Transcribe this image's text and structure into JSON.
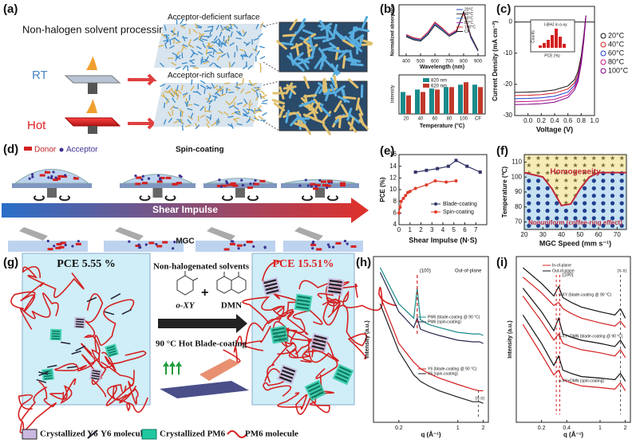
{
  "panels": {
    "a": {
      "label": "(a)",
      "title": "Non-halogen solvent processing",
      "rt": "RT",
      "hot": "Hot",
      "top_caption": "Acceptor-deficient surface",
      "bottom_caption": "Acceptor-rich surface"
    },
    "b": {
      "label": "(b)",
      "top": {
        "type": "line",
        "ylabel": "Normalized absorption",
        "xlabel": "Wavelength (nm)",
        "xlim": [
          350,
          950
        ],
        "ylim": [
          0,
          1.15
        ],
        "xticks": [
          400,
          500,
          600,
          700,
          800,
          900
        ],
        "x": [
          400,
          450,
          500,
          550,
          600,
          650,
          700,
          750,
          800,
          850,
          900
        ],
        "series": [
          {
            "name": "20°C",
            "color": "#1f3fbf",
            "values": [
              0.45,
              0.38,
              0.35,
              0.5,
              0.72,
              0.6,
              0.45,
              0.55,
              0.98,
              0.4,
              0.1
            ]
          },
          {
            "name": "40°C",
            "color": "#444444",
            "values": [
              0.46,
              0.39,
              0.36,
              0.51,
              0.73,
              0.61,
              0.46,
              0.56,
              0.97,
              0.42,
              0.11
            ]
          },
          {
            "name": "60°C",
            "color": "#3a7fd5",
            "values": [
              0.44,
              0.37,
              0.35,
              0.49,
              0.71,
              0.59,
              0.46,
              0.57,
              0.99,
              0.41,
              0.1
            ]
          },
          {
            "name": "80°C",
            "color": "#9b3fbf",
            "values": [
              0.47,
              0.4,
              0.37,
              0.52,
              0.74,
              0.62,
              0.47,
              0.56,
              0.96,
              0.43,
              0.12
            ]
          },
          {
            "name": "100°C",
            "color": "#d43030",
            "values": [
              0.48,
              0.41,
              0.38,
              0.53,
              0.76,
              0.63,
              0.48,
              0.58,
              0.95,
              0.44,
              0.12
            ]
          },
          {
            "name": "CF",
            "color": "#111111",
            "values": [
              0.43,
              0.36,
              0.33,
              0.47,
              0.69,
              0.57,
              0.44,
              0.53,
              1.0,
              0.45,
              0.13
            ]
          }
        ]
      },
      "bottom": {
        "type": "bar",
        "ylabel": "Intensity",
        "xlabel": "Temperature (°C)",
        "ylim": [
          0,
          0.8
        ],
        "categories": [
          "20",
          "40",
          "60",
          "80",
          "100",
          "CF"
        ],
        "series": [
          {
            "name": "820 nm",
            "color": "#1a8a8a",
            "values": [
              0.45,
              0.5,
              0.52,
              0.55,
              0.6,
              0.6
            ]
          },
          {
            "name": "620 nm",
            "color": "#c0392b",
            "values": [
              0.38,
              0.45,
              0.5,
              0.55,
              0.65,
              0.55
            ]
          }
        ]
      }
    },
    "c": {
      "label": "(c)",
      "type": "line",
      "xlabel": "Voltage (V)",
      "ylabel": "Current Density (mA cm⁻²)",
      "xlim": [
        -0.2,
        1.0
      ],
      "ylim": [
        -30,
        5
      ],
      "xticks": [
        {
          "value": 0,
          "label": "0.0"
        },
        0.2,
        0.4,
        0.6,
        0.8,
        {
          "value": 1,
          "label": "1.0"
        }
      ],
      "yticks": [
        -30,
        -20,
        -10,
        0
      ],
      "x": [
        -0.2,
        0,
        0.2,
        0.4,
        0.6,
        0.7,
        0.75,
        0.8,
        0.84,
        0.87
      ],
      "series": [
        {
          "name": "20°C",
          "color": "#111111",
          "values": [
            -22.6,
            -22.5,
            -22.3,
            -21.8,
            -20.5,
            -18.5,
            -16,
            -11,
            -4,
            2
          ]
        },
        {
          "name": "40°C",
          "color": "#d42020",
          "values": [
            -23.6,
            -23.5,
            -23.3,
            -22.8,
            -21.5,
            -19.5,
            -17,
            -12,
            -4.5,
            2
          ]
        },
        {
          "name": "60°C",
          "color": "#2040d0",
          "values": [
            -24.6,
            -24.5,
            -24.3,
            -23.8,
            -22.5,
            -20.3,
            -17.8,
            -12.5,
            -5,
            2
          ]
        },
        {
          "name": "80°C",
          "color": "#c71585",
          "values": [
            -25.6,
            -25.5,
            -25.3,
            -24.8,
            -23.4,
            -21,
            -18.5,
            -13,
            -5.5,
            2
          ]
        },
        {
          "name": "100°C",
          "color": "#800080",
          "values": [
            -26.5,
            -26.4,
            -26.2,
            -25.7,
            -24.2,
            -21.8,
            -19.2,
            -13.5,
            -6,
            2
          ]
        }
      ],
      "inset": {
        "title": "I-BHJ in o-xy",
        "xlabel": "PCE (%)",
        "ylabel": "Counts"
      }
    },
    "d": {
      "label": "(d)",
      "donor": "Donor",
      "acceptor": "Acceptor",
      "spin": "Spin-coating",
      "shear": "Shear Impulse",
      "mgc": "MGC"
    },
    "e": {
      "label": "(e)",
      "type": "line",
      "xlabel": "Shear Impulse (N·S)",
      "ylabel": "PCE (%)",
      "xlim": [
        0,
        8
      ],
      "ylim": [
        4,
        16
      ],
      "xticks": [
        0,
        1,
        2,
        3,
        4,
        5,
        6,
        7
      ],
      "yticks": [
        4,
        6,
        8,
        10,
        12,
        14,
        16
      ],
      "series": [
        {
          "name": "Blade-coating",
          "color": "#333366",
          "x": [
            1.5,
            2.5,
            3.5,
            4.5,
            5.2,
            6.2,
            7.4
          ],
          "values": [
            13,
            13.3,
            13.6,
            14,
            15,
            14,
            13
          ]
        },
        {
          "name": "Spin-coating",
          "color": "#e03a2a",
          "x": [
            0,
            0.1,
            0.2,
            0.4,
            0.6,
            0.8,
            1.0,
            1.5,
            2.5,
            3.3,
            4.3,
            5.2
          ],
          "values": [
            6,
            7,
            8,
            8.5,
            9,
            9.5,
            9.7,
            10.2,
            10.8,
            11.5,
            11.3,
            11.5
          ]
        }
      ]
    },
    "f": {
      "label": "(f)",
      "type": "line",
      "xlabel": "MGC Speed (mm s⁻¹)",
      "ylabel": "Temperature (℃)",
      "xlim": [
        20,
        75
      ],
      "ylim": [
        65,
        115
      ],
      "xticks": [
        20,
        30,
        40,
        50,
        60,
        70
      ],
      "yticks": [
        70,
        80,
        90,
        100,
        110
      ],
      "x": [
        20,
        30,
        35,
        40,
        45,
        50,
        55,
        60,
        70,
        75
      ],
      "series": [
        {
          "color": "#c0283a",
          "values": [
            103,
            100,
            92,
            81,
            82,
            92,
            100,
            103,
            103,
            103
          ]
        }
      ],
      "upper": "Homogeneity",
      "lower": "Nonuniform (coffee-ring effect)"
    },
    "g": {
      "label": "(g)",
      "pce_left": "PCE  5.55 %",
      "solvents": "Non-halogenated solvents",
      "oxy": "o-XY",
      "dmn": "DMN",
      "process": "90 °C Hot Blade-coating",
      "pce_right": "PCE 15.51%",
      "legend": [
        "Crystallized Y6",
        "Y6 molecule",
        "Crystallized PM6",
        "PM6 molecule"
      ]
    },
    "h": {
      "label": "(h)",
      "type": "line",
      "xlabel": "q (Å⁻¹)",
      "ylabel": "Intensity (a.u.)",
      "xlog": true,
      "xlim": [
        0.1,
        2.3
      ],
      "ylim": [
        0,
        10.5
      ],
      "xticks": [
        0.2,
        1,
        2
      ],
      "note": "Out-of-plane",
      "peak": "(100)",
      "pipi": "(π-π)",
      "x": [
        0.12,
        0.2,
        0.3,
        0.33,
        0.36,
        0.45,
        0.6,
        1,
        1.5,
        1.8,
        2
      ],
      "series": [
        {
          "name": "PM6 (blade-coating @ 90 °C)",
          "color": "#1a8a8a",
          "values": [
            9.8,
            7.5,
            6.6,
            8.5,
            6.5,
            6.2,
            6.0,
            5.7,
            5.6,
            5.6,
            5.5
          ]
        },
        {
          "name": "PM6 (spin-coating)",
          "color": "#2a2a50",
          "values": [
            9.5,
            7,
            6.0,
            6.6,
            5.9,
            5.7,
            5.5,
            5.2,
            5.1,
            5.1,
            5.0
          ]
        },
        {
          "name": "Y6 (blade-coating @ 90 °C)",
          "color": "#d42020",
          "values": [
            8,
            5,
            3.8,
            3.6,
            3.4,
            3.1,
            2.8,
            2.4,
            2.1,
            2.0,
            2.0
          ]
        },
        {
          "name": "Y6 (spin-coating)",
          "color": "#222222",
          "values": [
            7.5,
            4.5,
            3.0,
            2.8,
            2.6,
            2.3,
            2.0,
            1.6,
            1.3,
            1.3,
            1.2
          ]
        }
      ]
    },
    "i": {
      "label": "(i)",
      "type": "line",
      "xlabel": "q (Å⁻¹)",
      "ylabel": "Intensity (a.u.)",
      "xlog": true,
      "xlim": [
        0.1,
        2.3
      ],
      "ylim": [
        0,
        10.5
      ],
      "xticks": [
        0.2,
        0.4,
        1,
        2
      ],
      "peak": "(100)",
      "pipi": "(π-π)",
      "legend": [
        {
          "name": "In-of-plane",
          "color": "#d42020"
        },
        {
          "name": "Out-of-plane",
          "color": "#111111"
        }
      ],
      "curve_labels": [
        "o-XY (blade-coating @ 90 °C)",
        "o-XY+DMN (blade-coating @ 90 °C)",
        "o-XY+DMN (spin-coating)"
      ],
      "x": [
        0.12,
        0.2,
        0.28,
        0.32,
        0.36,
        0.45,
        0.6,
        1,
        1.5,
        1.75,
        2
      ],
      "series": [
        {
          "color": "#111111",
          "values": [
            9.8,
            8.8,
            8.0,
            8.6,
            7.9,
            7.6,
            7.3,
            7.0,
            6.8,
            7.2,
            6.6
          ]
        },
        {
          "color": "#d42020",
          "values": [
            9.2,
            8.2,
            7.4,
            7.6,
            7.2,
            6.9,
            6.6,
            6.3,
            6.1,
            6.4,
            6.0
          ]
        },
        {
          "color": "#111111",
          "values": [
            8.5,
            7.0,
            5.8,
            6.6,
            5.6,
            5.4,
            5.2,
            5.0,
            4.8,
            5.2,
            4.7
          ]
        },
        {
          "color": "#d42020",
          "values": [
            8,
            6.4,
            5.2,
            5.6,
            5.0,
            4.8,
            4.6,
            4.4,
            4.2,
            4.6,
            4.1
          ]
        },
        {
          "color": "#111111",
          "values": [
            6.8,
            5.0,
            3.6,
            4.2,
            3.3,
            3.1,
            2.9,
            2.8,
            2.7,
            3.1,
            2.6
          ]
        },
        {
          "color": "#d42020",
          "values": [
            6.2,
            4.3,
            3.0,
            3.3,
            2.7,
            2.5,
            2.3,
            2.2,
            2.1,
            2.5,
            2.0
          ]
        }
      ]
    }
  }
}
